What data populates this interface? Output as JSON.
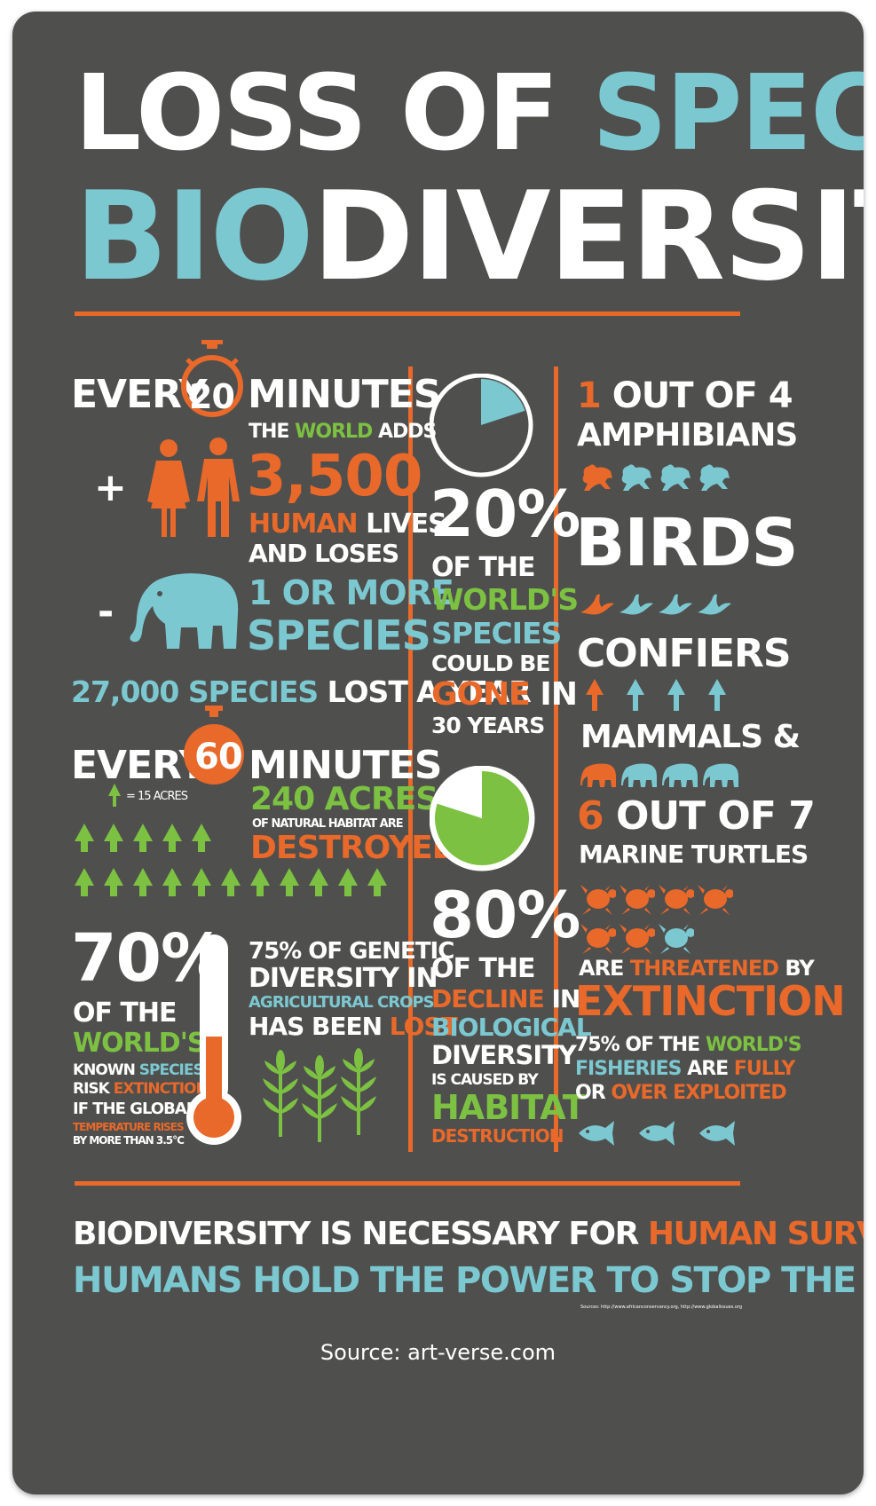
{
  "title": {
    "line1_a": "LOSS OF ",
    "line1_b": "SPECIES",
    "line2_a": "BIO",
    "line2_b": "DIVERSITY"
  },
  "left": {
    "every1_a": "EVERY",
    "every1_num": "20",
    "every1_b": "MINUTES",
    "the": "THE",
    "world": "WORLD",
    "adds": "ADDS",
    "plus": "+",
    "num_3500": "3,500",
    "human": "HUMAN",
    "lives": "LIVES",
    "and_loses": "AND LOSES",
    "minus": "-",
    "one_or": "1 OR",
    "more": "MORE",
    "species": "SPECIES",
    "species_27000": "27,000 SPECIES",
    "lost_a_year": "LOST A YEAR",
    "every2_a": "EVERY",
    "every2_num": "60",
    "every2_b": "MINUTES",
    "legend": "= 15 ACRES",
    "acres": "240 ACRES",
    "natural": "OF NATURAL HABITAT ARE",
    "destroyed": "DESTROYED",
    "pct70": "70%",
    "of_the": "OF THE",
    "worlds": "WORLD'S",
    "known": "KNOWN",
    "species2": "SPECIES",
    "risk": "RISK",
    "extinction": "EXTINCTION",
    "if_global": "IF THE GLOBAL",
    "temp_rises": "TEMPERATURE RISES",
    "by_more": "BY MORE THAN 3.5°C",
    "genetic1": "75% OF GENETIC",
    "genetic2": "DIVERSITY IN",
    "agri": "AGRICULTURAL CROPS",
    "has_been": "HAS BEEN",
    "lost": "LOST"
  },
  "middle": {
    "pct20": "20%",
    "of_the": "OF THE",
    "worlds": "WORLD'S",
    "species": "SPECIES",
    "could_be": "COULD BE",
    "gone": "GONE",
    "in": "IN",
    "years": "30 YEARS",
    "pct80": "80%",
    "of_the2": "OF THE",
    "decline": "DECLINE",
    "in2": "IN",
    "biological": "BIOLOGICAL",
    "diversity": "DIVERSITY",
    "caused": "IS CAUSED BY",
    "habitat": "HABITAT",
    "destruction": "DESTRUCTION"
  },
  "right": {
    "one": "1",
    "out_of_4": "OUT OF 4",
    "amphibians": "AMPHIBIANS",
    "birds": "BIRDS",
    "confiers": "CONFIERS",
    "mammals": "MAMMALS &",
    "six": "6",
    "out_of_7": "OUT OF 7",
    "marine": "MARINE TURTLES",
    "are": "ARE",
    "threatened": "THREATENED",
    "by": "BY",
    "extinction": "EXTINCTION",
    "fish1_a": "75% OF THE",
    "fish1_b": "WORLD'S",
    "fisheries": "FISHERIES",
    "are2": "ARE",
    "fully": "FULLY",
    "or": "OR",
    "over": "OVER EXPLOITED"
  },
  "bottom": {
    "line1_a": "BIODIVERSITY IS NECESSARY FOR ",
    "line1_b": "HUMAN SURVIVAL",
    "line2": "HUMANS HOLD THE POWER TO STOP THE LOSS",
    "sources": "Sources: http://www.africanconservancy.org, http://www.globalissues.org"
  },
  "footer": "Source: art-verse.com",
  "colors": {
    "background": "#4f4f4d",
    "orange": "#e8692a",
    "blue": "#7cc8d1",
    "green": "#7cc142",
    "white": "#ffffff"
  },
  "charts": {
    "species_gone_percent": 20,
    "habitat_decline_percent": 80
  },
  "icons": [
    "stopwatch-icon",
    "female-icon",
    "male-icon",
    "elephant-icon",
    "tree-icon",
    "thermometer-icon",
    "corn-icon",
    "frog-icon",
    "bird-icon",
    "conifer-icon",
    "mammal-icon",
    "turtle-icon",
    "fish-icon"
  ]
}
